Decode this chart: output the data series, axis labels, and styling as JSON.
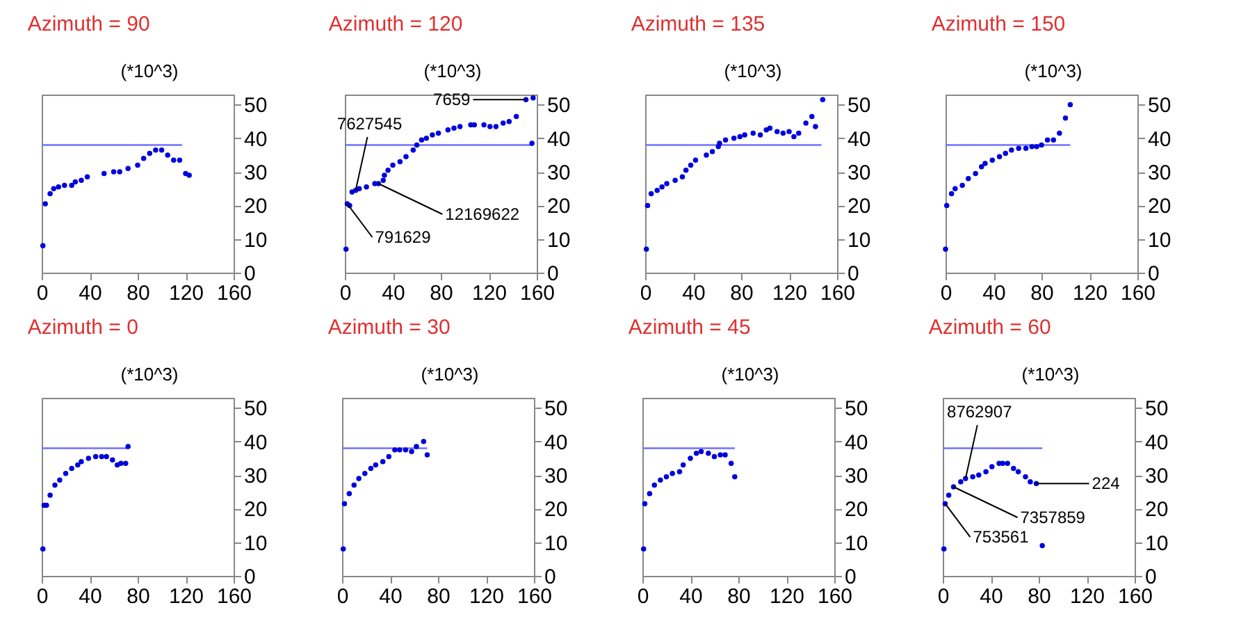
{
  "chart_data": [
    {
      "type": "scatter",
      "title": "Azimuth = 90",
      "ylabel": "(*10^3)",
      "xlim": [
        0,
        160
      ],
      "ylim": [
        0,
        53
      ],
      "xticks": [
        0,
        40,
        80,
        120,
        160
      ],
      "yticks": [
        0,
        10,
        20,
        30,
        40,
        50
      ],
      "series": [
        {
          "type": "scatter",
          "marker": "circle",
          "color": "#0000dd",
          "x": [
            1,
            3,
            7,
            10,
            14,
            19,
            25,
            28,
            33,
            38,
            52,
            60,
            65,
            72,
            80,
            85,
            90,
            95,
            100,
            105,
            110,
            115,
            120,
            123
          ],
          "values": [
            8,
            20.5,
            23.5,
            25,
            25.5,
            26,
            26,
            27,
            27.5,
            28.5,
            29.5,
            30,
            30,
            31,
            32,
            34,
            35.5,
            36.5,
            36.5,
            35,
            33.5,
            33.5,
            29.5,
            29
          ]
        },
        {
          "type": "line",
          "color": "#7070ff",
          "x": [
            0,
            117
          ],
          "values": [
            38,
            38
          ]
        }
      ]
    },
    {
      "type": "scatter",
      "title": "Azimuth = 120",
      "ylabel": "(*10^3)",
      "xlim": [
        0,
        160
      ],
      "ylim": [
        0,
        53
      ],
      "xticks": [
        0,
        40,
        80,
        120,
        160
      ],
      "yticks": [
        0,
        10,
        20,
        30,
        40,
        50
      ],
      "series": [
        {
          "type": "scatter",
          "marker": "circle",
          "color": "#0000dd",
          "x": [
            1,
            2,
            4,
            6,
            9,
            12,
            18,
            25,
            28,
            32,
            33,
            36,
            40,
            46,
            51,
            57,
            60,
            64,
            68,
            73,
            78,
            86,
            91,
            96,
            105,
            108,
            116,
            121,
            126,
            132,
            137,
            143,
            151,
            157,
            156
          ],
          "values": [
            7,
            20.5,
            20,
            24,
            24.5,
            25,
            25.5,
            26.5,
            26.5,
            27.5,
            29,
            30.5,
            32,
            33,
            34.5,
            36.5,
            38,
            39.5,
            40,
            41,
            41.5,
            42.5,
            43,
            43.5,
            44,
            44,
            44,
            43.5,
            43.5,
            44.5,
            45,
            46.5,
            51.5,
            52,
            38.5
          ]
        },
        {
          "type": "line",
          "color": "#7070ff",
          "x": [
            0,
            157
          ],
          "values": [
            38,
            38
          ]
        }
      ],
      "annotations": [
        {
          "text": "7627545",
          "x": 9,
          "y": 24.5
        },
        {
          "text": "12169622",
          "x": 28,
          "y": 26.5
        },
        {
          "text": "791629",
          "x": 2,
          "y": 20.5
        },
        {
          "text": "7659",
          "x": 151,
          "y": 51.5
        }
      ]
    },
    {
      "type": "scatter",
      "title": "Azimuth = 135",
      "ylabel": "(*10^3)",
      "xlim": [
        0,
        160
      ],
      "ylim": [
        0,
        53
      ],
      "xticks": [
        0,
        40,
        80,
        120,
        160
      ],
      "yticks": [
        0,
        10,
        20,
        30,
        40,
        50
      ],
      "series": [
        {
          "type": "scatter",
          "marker": "circle",
          "color": "#0000dd",
          "x": [
            1,
            2,
            5,
            10,
            14,
            18,
            25,
            31,
            34,
            38,
            42,
            51,
            56,
            61,
            62,
            67,
            74,
            79,
            83,
            90,
            96,
            101,
            104,
            110,
            115,
            120,
            124,
            128,
            134,
            139,
            142,
            148
          ],
          "values": [
            7,
            20,
            23.5,
            24.5,
            25.5,
            26.5,
            27.5,
            28.5,
            30.5,
            32,
            33.5,
            35,
            36,
            37.5,
            38.5,
            39.5,
            40,
            40.5,
            41,
            41.5,
            41,
            42.5,
            43,
            42,
            41.5,
            42,
            40.5,
            41.5,
            44.5,
            46.5,
            43.5,
            51.5
          ]
        },
        {
          "type": "line",
          "color": "#7070ff",
          "x": [
            0,
            147
          ],
          "values": [
            38,
            38
          ]
        }
      ]
    },
    {
      "type": "scatter",
      "title": "Azimuth = 150",
      "ylabel": "(*10^3)",
      "xlim": [
        0,
        160
      ],
      "ylim": [
        0,
        53
      ],
      "xticks": [
        0,
        40,
        80,
        120,
        160
      ],
      "yticks": [
        0,
        10,
        20,
        30,
        40,
        50
      ],
      "series": [
        {
          "type": "scatter",
          "marker": "circle",
          "color": "#0000dd",
          "x": [
            0,
            1,
            5,
            8,
            14,
            19,
            25,
            30,
            33,
            39,
            45,
            50,
            55,
            61,
            67,
            72,
            76,
            80,
            85,
            90,
            95,
            100,
            104
          ],
          "values": [
            7,
            20,
            23.5,
            25,
            26,
            28,
            29.5,
            31.5,
            32.5,
            33.5,
            34.5,
            35.5,
            36.5,
            37,
            37,
            37.5,
            37.5,
            38,
            39.5,
            39.5,
            41.5,
            46,
            50
          ]
        },
        {
          "type": "line",
          "color": "#7070ff",
          "x": [
            0,
            104
          ],
          "values": [
            38,
            38
          ]
        }
      ]
    },
    {
      "type": "scatter",
      "title": "Azimuth = 0",
      "ylabel": "(*10^3)",
      "xlim": [
        0,
        160
      ],
      "ylim": [
        0,
        53
      ],
      "xticks": [
        0,
        40,
        80,
        120,
        160
      ],
      "yticks": [
        0,
        10,
        20,
        30,
        40,
        50
      ],
      "series": [
        {
          "type": "scatter",
          "marker": "circle",
          "color": "#0000dd",
          "x": [
            1,
            2,
            4,
            7,
            11,
            15,
            20,
            25,
            30,
            33,
            39,
            45,
            50,
            54,
            59,
            63,
            66,
            70,
            72
          ],
          "values": [
            8,
            21,
            21,
            24,
            27,
            28.5,
            30.5,
            32,
            33,
            34,
            35,
            35.5,
            35.5,
            35.5,
            34.5,
            33,
            33.5,
            33.5,
            38.5
          ]
        },
        {
          "type": "line",
          "color": "#7070ff",
          "x": [
            0,
            72
          ],
          "values": [
            38,
            38
          ]
        }
      ]
    },
    {
      "type": "scatter",
      "title": "Azimuth = 30",
      "ylabel": "(*10^3)",
      "xlim": [
        0,
        160
      ],
      "ylim": [
        0,
        53
      ],
      "xticks": [
        0,
        40,
        80,
        120,
        160
      ],
      "yticks": [
        0,
        10,
        20,
        30,
        40,
        50
      ],
      "series": [
        {
          "type": "scatter",
          "marker": "circle",
          "color": "#0000dd",
          "x": [
            1,
            2,
            6,
            10,
            14,
            19,
            24,
            28,
            34,
            39,
            44,
            48,
            53,
            58,
            62,
            68,
            71
          ],
          "values": [
            8,
            21.5,
            24.5,
            27,
            29,
            30.5,
            32,
            33,
            34,
            35.5,
            37.5,
            37.5,
            37.5,
            37,
            38.5,
            40,
            36
          ]
        },
        {
          "type": "line",
          "color": "#7070ff",
          "x": [
            0,
            71
          ],
          "values": [
            38,
            38
          ]
        }
      ]
    },
    {
      "type": "scatter",
      "title": "Azimuth = 45",
      "ylabel": "(*10^3)",
      "xlim": [
        0,
        160
      ],
      "ylim": [
        0,
        53
      ],
      "xticks": [
        0,
        40,
        80,
        120,
        160
      ],
      "yticks": [
        0,
        10,
        20,
        30,
        40,
        50
      ],
      "series": [
        {
          "type": "scatter",
          "marker": "circle",
          "color": "#0000dd",
          "x": [
            1,
            2,
            6,
            10,
            15,
            20,
            25,
            31,
            34,
            40,
            45,
            49,
            55,
            60,
            65,
            69,
            74,
            77
          ],
          "values": [
            8,
            21.5,
            24.5,
            27,
            28.5,
            29.5,
            30.5,
            31,
            33,
            35,
            36.5,
            37,
            36.5,
            35.5,
            36,
            36,
            33.5,
            29.5
          ]
        },
        {
          "type": "line",
          "color": "#7070ff",
          "x": [
            0,
            77
          ],
          "values": [
            38,
            38
          ]
        }
      ]
    },
    {
      "type": "scatter",
      "title": "Azimuth = 60",
      "ylabel": "(*10^3)",
      "xlim": [
        0,
        160
      ],
      "ylim": [
        0,
        53
      ],
      "xticks": [
        0,
        40,
        80,
        120,
        160
      ],
      "yticks": [
        0,
        10,
        20,
        30,
        40,
        50
      ],
      "series": [
        {
          "type": "scatter",
          "marker": "circle",
          "color": "#0000dd",
          "x": [
            1,
            2,
            5,
            9,
            15,
            19,
            25,
            30,
            36,
            41,
            47,
            50,
            54,
            59,
            63,
            69,
            73,
            78,
            83
          ],
          "values": [
            8,
            21.5,
            24,
            26.5,
            28,
            29,
            29.5,
            30,
            31,
            32.5,
            33.5,
            33.5,
            33.5,
            32,
            31,
            29.5,
            28,
            27.5,
            9
          ]
        },
        {
          "type": "line",
          "color": "#7070ff",
          "x": [
            0,
            83
          ],
          "values": [
            38,
            38
          ]
        }
      ],
      "annotations": [
        {
          "text": "8762907",
          "x": 19,
          "y": 29
        },
        {
          "text": "7357859",
          "x": 9,
          "y": 26.5
        },
        {
          "text": "753561",
          "x": 2,
          "y": 21.5
        },
        {
          "text": "224",
          "x": 78,
          "y": 27.5
        }
      ]
    }
  ]
}
